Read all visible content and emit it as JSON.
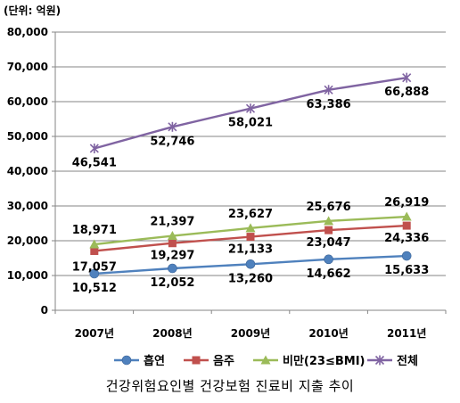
{
  "chart_data": {
    "type": "line",
    "unit_label": "(단위: 억원)",
    "categories": [
      "2007년",
      "2008년",
      "2009년",
      "2010년",
      "2011년"
    ],
    "ylim": [
      0,
      80000
    ],
    "yticks": [
      0,
      10000,
      20000,
      30000,
      40000,
      50000,
      60000,
      70000,
      80000
    ],
    "ytick_labels": [
      "0",
      "10,000",
      "20,000",
      "30,000",
      "40,000",
      "50,000",
      "60,000",
      "70,000",
      "80,000"
    ],
    "grid": true,
    "legend_position": "bottom",
    "series": [
      {
        "name": "흡연",
        "color": "#4f81bd",
        "marker": "circle",
        "values": [
          10512,
          12052,
          13260,
          14662,
          15633
        ],
        "labels": [
          "10,512",
          "12,052",
          "13,260",
          "14,662",
          "15,633"
        ]
      },
      {
        "name": "음주",
        "color": "#c0504d",
        "marker": "square",
        "values": [
          17057,
          19297,
          21133,
          23047,
          24336
        ],
        "labels": [
          "17,057",
          "19,297",
          "21,133",
          "23,047",
          "24,336"
        ]
      },
      {
        "name": "비만(23≤BMI)",
        "color": "#9bbb59",
        "marker": "triangle",
        "values": [
          18971,
          21397,
          23627,
          25676,
          26919
        ],
        "labels": [
          "18,971",
          "21,397",
          "23,627",
          "25,676",
          "26,919"
        ]
      },
      {
        "name": "전체",
        "color": "#8064a2",
        "marker": "star",
        "values": [
          46541,
          52746,
          58021,
          63386,
          66888
        ],
        "labels": [
          "46,541",
          "52,746",
          "58,021",
          "63,386",
          "66,888"
        ]
      }
    ]
  },
  "caption": "건강위험요인별 건강보험 진료비 지출 추이"
}
